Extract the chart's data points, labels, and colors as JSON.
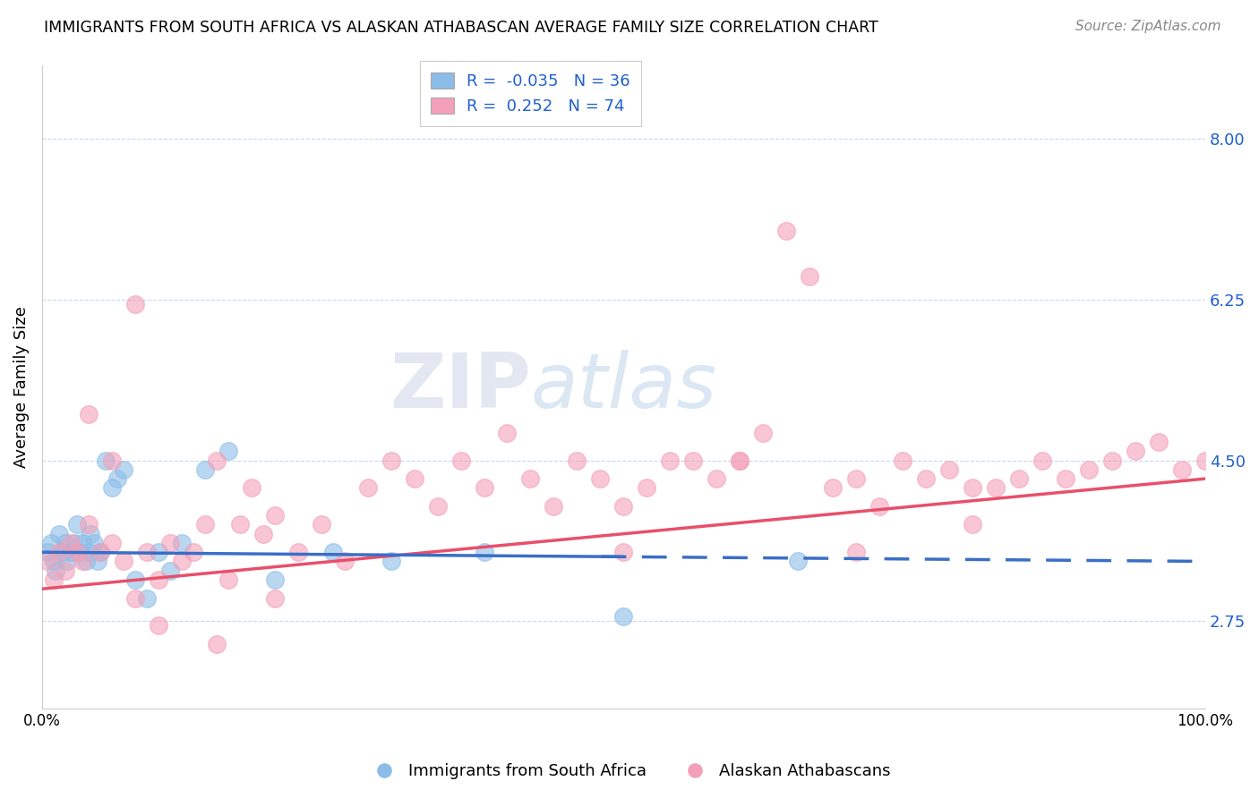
{
  "title": "IMMIGRANTS FROM SOUTH AFRICA VS ALASKAN ATHABASCAN AVERAGE FAMILY SIZE CORRELATION CHART",
  "source": "Source: ZipAtlas.com",
  "ylabel": "Average Family Size",
  "xlim": [
    0,
    100
  ],
  "ylim": [
    1.8,
    8.8
  ],
  "yticks": [
    2.75,
    4.5,
    6.25,
    8.0
  ],
  "ytick_labels": [
    "2.75",
    "4.50",
    "6.25",
    "8.00"
  ],
  "xtick_labels": [
    "0.0%",
    "100.0%"
  ],
  "legend_labels": [
    "Immigrants from South Africa",
    "Alaskan Athabascans"
  ],
  "blue_R": -0.035,
  "blue_N": 36,
  "pink_R": 0.252,
  "pink_N": 74,
  "blue_color": "#8BBDE8",
  "pink_color": "#F4A0B8",
  "blue_line_color": "#3A6EC8",
  "pink_line_color": "#E8506A",
  "background_color": "#FFFFFF",
  "blue_x": [
    0.5,
    0.8,
    1.0,
    1.2,
    1.5,
    1.8,
    2.0,
    2.2,
    2.5,
    2.8,
    3.0,
    3.2,
    3.5,
    3.8,
    4.0,
    4.2,
    4.5,
    4.8,
    5.0,
    5.5,
    6.0,
    6.5,
    7.0,
    8.0,
    9.0,
    10.0,
    11.0,
    12.0,
    14.0,
    16.0,
    20.0,
    25.0,
    30.0,
    38.0,
    50.0,
    65.0
  ],
  "blue_y": [
    3.5,
    3.6,
    3.4,
    3.3,
    3.7,
    3.5,
    3.6,
    3.4,
    3.5,
    3.6,
    3.8,
    3.5,
    3.6,
    3.4,
    3.5,
    3.7,
    3.6,
    3.4,
    3.5,
    4.5,
    4.2,
    4.3,
    4.4,
    3.2,
    3.0,
    3.5,
    3.3,
    3.6,
    4.4,
    4.6,
    3.2,
    3.5,
    3.4,
    3.5,
    2.8,
    3.4
  ],
  "pink_x": [
    0.5,
    1.0,
    1.5,
    2.0,
    2.5,
    3.0,
    3.5,
    4.0,
    5.0,
    6.0,
    7.0,
    8.0,
    9.0,
    10.0,
    11.0,
    12.0,
    13.0,
    14.0,
    15.0,
    16.0,
    17.0,
    18.0,
    19.0,
    20.0,
    22.0,
    24.0,
    26.0,
    28.0,
    30.0,
    32.0,
    34.0,
    36.0,
    38.0,
    40.0,
    42.0,
    44.0,
    46.0,
    48.0,
    50.0,
    52.0,
    54.0,
    56.0,
    58.0,
    60.0,
    62.0,
    64.0,
    66.0,
    68.0,
    70.0,
    72.0,
    74.0,
    76.0,
    78.0,
    80.0,
    82.0,
    84.0,
    86.0,
    88.0,
    90.0,
    92.0,
    94.0,
    96.0,
    98.0,
    100.0,
    4.0,
    6.0,
    8.0,
    10.0,
    15.0,
    20.0,
    50.0,
    60.0,
    70.0,
    80.0
  ],
  "pink_y": [
    3.4,
    3.2,
    3.5,
    3.3,
    3.6,
    3.5,
    3.4,
    3.8,
    3.5,
    3.6,
    3.4,
    3.0,
    3.5,
    3.2,
    3.6,
    3.4,
    3.5,
    3.8,
    4.5,
    3.2,
    3.8,
    4.2,
    3.7,
    3.9,
    3.5,
    3.8,
    3.4,
    4.2,
    4.5,
    4.3,
    4.0,
    4.5,
    4.2,
    4.8,
    4.3,
    4.0,
    4.5,
    4.3,
    4.0,
    4.2,
    4.5,
    4.5,
    4.3,
    4.5,
    4.8,
    7.0,
    6.5,
    4.2,
    3.5,
    4.0,
    4.5,
    4.3,
    4.4,
    3.8,
    4.2,
    4.3,
    4.5,
    4.3,
    4.4,
    4.5,
    4.6,
    4.7,
    4.4,
    4.5,
    5.0,
    4.5,
    6.2,
    2.7,
    2.5,
    3.0,
    3.5,
    4.5,
    4.3,
    4.2
  ]
}
